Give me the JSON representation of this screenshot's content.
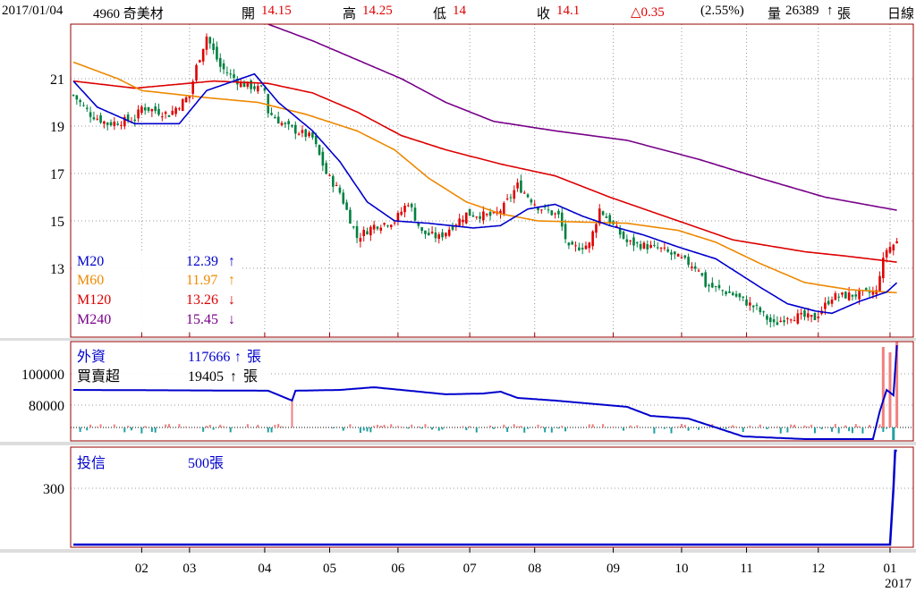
{
  "header": {
    "date": "2017/01/04",
    "stock": "4960 奇美材",
    "open_label": "開",
    "open": "14.15",
    "high_label": "高",
    "high": "14.25",
    "low_label": "低",
    "low": "14",
    "close_label": "收",
    "close": "14.1",
    "change": "△0.35",
    "change_pct": "(2.55%)",
    "volume_label": "量",
    "volume": "26389",
    "volume_arrow": "↑",
    "volume_unit": "張",
    "period": "日線"
  },
  "colors": {
    "ma20": "#0000cc",
    "ma60": "#ee8800",
    "ma120": "#dd0000",
    "ma240": "#770088",
    "up": "#e00000",
    "down": "#008040",
    "frame": "#990000"
  },
  "legend": [
    {
      "name": "M20",
      "value": "12.39",
      "arrow": "↑"
    },
    {
      "name": "M60",
      "value": "11.97",
      "arrow": "↑"
    },
    {
      "name": "M120",
      "value": "13.26",
      "arrow": "↓"
    },
    {
      "name": "M240",
      "value": "15.45",
      "arrow": "↓"
    }
  ],
  "foreign": {
    "label": "外資",
    "value": "117666",
    "arrow": "↑",
    "unit": "張",
    "net_label": "買賣超",
    "net_value": "19405",
    "net_arrow": "↑",
    "net_unit": "張"
  },
  "trust": {
    "label": "投信",
    "value": "500張"
  },
  "chart_data": {
    "type": "candlestick",
    "price_axis": {
      "ticks": [
        "21",
        "19",
        "17",
        "15",
        "13"
      ],
      "range": [
        10.3,
        23.2
      ]
    },
    "x_months": [
      {
        "label": "02",
        "day": 20
      },
      {
        "label": "03",
        "day": 34
      },
      {
        "label": "04",
        "day": 56
      },
      {
        "label": "05",
        "day": 75
      },
      {
        "label": "06",
        "day": 95
      },
      {
        "label": "07",
        "day": 116
      },
      {
        "label": "08",
        "day": 135
      },
      {
        "label": "09",
        "day": 158
      },
      {
        "label": "10",
        "day": 178
      },
      {
        "label": "11",
        "day": 197
      },
      {
        "label": "12",
        "day": 218
      },
      {
        "label": "01",
        "day": 239
      }
    ],
    "year_label": "2017",
    "close_path": [
      [
        0,
        20.3
      ],
      [
        5,
        19.5
      ],
      [
        10,
        19.1
      ],
      [
        18,
        19.3
      ],
      [
        20,
        19.8
      ],
      [
        28,
        19.5
      ],
      [
        34,
        20.3
      ],
      [
        36,
        21.5
      ],
      [
        39,
        22.8
      ],
      [
        43,
        21.5
      ],
      [
        49,
        20.8
      ],
      [
        56,
        20.5
      ],
      [
        57,
        19.6
      ],
      [
        62,
        19.0
      ],
      [
        70,
        18.5
      ],
      [
        74,
        17.0
      ],
      [
        78,
        16.2
      ],
      [
        83,
        14.3
      ],
      [
        88,
        14.8
      ],
      [
        94,
        15.0
      ],
      [
        98,
        15.8
      ],
      [
        102,
        14.5
      ],
      [
        107,
        14.3
      ],
      [
        115,
        15.3
      ],
      [
        123,
        15.2
      ],
      [
        126,
        15.6
      ],
      [
        130,
        16.5
      ],
      [
        136,
        15.6
      ],
      [
        142,
        15.2
      ],
      [
        145,
        13.8
      ],
      [
        151,
        14.0
      ],
      [
        154,
        15.5
      ],
      [
        162,
        14.1
      ],
      [
        172,
        13.8
      ],
      [
        183,
        13.0
      ],
      [
        185,
        12.3
      ],
      [
        193,
        11.9
      ],
      [
        200,
        11.3
      ],
      [
        205,
        10.6
      ],
      [
        209,
        11.0
      ],
      [
        217,
        10.9
      ],
      [
        222,
        11.8
      ],
      [
        230,
        11.9
      ],
      [
        235,
        12.0
      ],
      [
        236,
        12.8
      ],
      [
        238,
        13.8
      ],
      [
        241,
        14.1
      ]
    ],
    "ma20": [
      [
        0,
        20.9
      ],
      [
        7,
        19.8
      ],
      [
        18,
        19.1
      ],
      [
        31,
        19.1
      ],
      [
        39,
        20.5
      ],
      [
        53,
        21.2
      ],
      [
        60,
        20.0
      ],
      [
        70,
        18.8
      ],
      [
        78,
        17.5
      ],
      [
        86,
        15.8
      ],
      [
        94,
        15.0
      ],
      [
        104,
        14.9
      ],
      [
        117,
        14.7
      ],
      [
        125,
        14.8
      ],
      [
        133,
        15.5
      ],
      [
        141,
        15.7
      ],
      [
        149,
        15.2
      ],
      [
        157,
        14.8
      ],
      [
        167,
        14.4
      ],
      [
        177,
        13.9
      ],
      [
        188,
        13.4
      ],
      [
        201,
        12.2
      ],
      [
        209,
        11.5
      ],
      [
        217,
        11.2
      ],
      [
        222,
        11.1
      ],
      [
        230,
        11.6
      ],
      [
        238,
        12.0
      ],
      [
        241,
        12.39
      ]
    ],
    "ma60": [
      [
        0,
        21.7
      ],
      [
        13,
        21.0
      ],
      [
        20,
        20.5
      ],
      [
        39,
        20.2
      ],
      [
        54,
        20.0
      ],
      [
        68,
        19.5
      ],
      [
        83,
        18.8
      ],
      [
        94,
        18.0
      ],
      [
        104,
        16.8
      ],
      [
        115,
        15.8
      ],
      [
        125,
        15.3
      ],
      [
        136,
        15.0
      ],
      [
        162,
        14.9
      ],
      [
        177,
        14.6
      ],
      [
        188,
        14.1
      ],
      [
        201,
        13.2
      ],
      [
        214,
        12.4
      ],
      [
        227,
        12.1
      ],
      [
        241,
        11.97
      ]
    ],
    "ma120": [
      [
        0,
        20.9
      ],
      [
        18,
        20.6
      ],
      [
        41,
        20.9
      ],
      [
        57,
        20.8
      ],
      [
        70,
        20.4
      ],
      [
        83,
        19.6
      ],
      [
        96,
        18.6
      ],
      [
        109,
        18.0
      ],
      [
        125,
        17.4
      ],
      [
        141,
        16.9
      ],
      [
        157,
        16.0
      ],
      [
        175,
        15.1
      ],
      [
        193,
        14.2
      ],
      [
        214,
        13.7
      ],
      [
        227,
        13.5
      ],
      [
        241,
        13.26
      ]
    ],
    "ma240": [
      [
        57,
        23.3
      ],
      [
        70,
        22.6
      ],
      [
        83,
        21.8
      ],
      [
        96,
        21.0
      ],
      [
        109,
        20.0
      ],
      [
        123,
        19.2
      ],
      [
        141,
        18.8
      ],
      [
        162,
        18.4
      ],
      [
        183,
        17.6
      ],
      [
        201,
        16.8
      ],
      [
        220,
        16.0
      ],
      [
        241,
        15.45
      ]
    ],
    "foreign_axis": {
      "ticks": [
        "100000",
        "80000"
      ]
    },
    "foreign_holdings": [
      [
        0,
        89700
      ],
      [
        57,
        89200
      ],
      [
        64,
        82900
      ],
      [
        65,
        89200
      ],
      [
        78,
        89700
      ],
      [
        88,
        91400
      ],
      [
        96,
        89700
      ],
      [
        109,
        86900
      ],
      [
        120,
        87400
      ],
      [
        125,
        88600
      ],
      [
        130,
        84600
      ],
      [
        141,
        82900
      ],
      [
        162,
        78900
      ],
      [
        169,
        73100
      ],
      [
        180,
        71400
      ],
      [
        188,
        65700
      ],
      [
        196,
        60000
      ],
      [
        214,
        58300
      ],
      [
        234,
        58300
      ],
      [
        236,
        76000
      ],
      [
        238,
        89700
      ],
      [
        240,
        86300
      ],
      [
        241,
        118300
      ]
    ],
    "trust_axis": {
      "ticks": [
        "300"
      ]
    },
    "trust_holdings": [
      [
        0,
        0
      ],
      [
        239,
        0
      ],
      [
        240,
        300
      ],
      [
        240.5,
        500
      ],
      [
        241,
        500
      ]
    ]
  }
}
